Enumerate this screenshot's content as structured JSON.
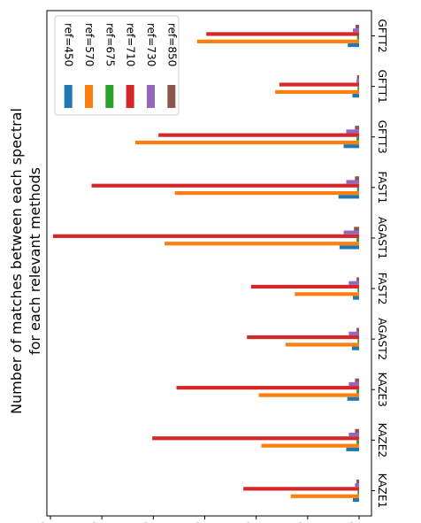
{
  "chart_data": {
    "type": "bar",
    "orientation": "horizontal",
    "rotated_view": true,
    "ylabel_lines": [
      "Number of matches between each spectral",
      "for each relevant methods"
    ],
    "ylim": [
      0,
      600
    ],
    "yticks": [
      0,
      100,
      200,
      300,
      400,
      500,
      600
    ],
    "grid": false,
    "legend_position": "top-left",
    "categories": [
      "KAZE1",
      "KAZE2",
      "KAZE3",
      "AGAST2",
      "FAST2",
      "AGAST1",
      "FAST1",
      "GFTT3",
      "GFTT1",
      "GFTT2"
    ],
    "series": [
      {
        "name": "ref=450",
        "color": "#1f77b4",
        "values": [
          12,
          25,
          23,
          14,
          12,
          38,
          40,
          30,
          13,
          22
        ]
      },
      {
        "name": "ref=570",
        "color": "#ff7f0e",
        "values": [
          133,
          190,
          195,
          143,
          125,
          378,
          358,
          435,
          163,
          315
        ]
      },
      {
        "name": "ref=675",
        "color": "#2ca02c",
        "values": [
          3,
          5,
          5,
          3,
          3,
          5,
          4,
          5,
          3,
          4
        ]
      },
      {
        "name": "ref=710",
        "color": "#d62728",
        "values": [
          225,
          402,
          355,
          218,
          210,
          595,
          520,
          390,
          155,
          297
        ]
      },
      {
        "name": "ref=730",
        "color": "#9467bd",
        "values": [
          8,
          20,
          20,
          20,
          20,
          30,
          25,
          25,
          5,
          12
        ]
      },
      {
        "name": "ref=850",
        "color": "#8c564b",
        "values": [
          5,
          8,
          8,
          5,
          5,
          10,
          8,
          8,
          4,
          7
        ]
      }
    ]
  }
}
